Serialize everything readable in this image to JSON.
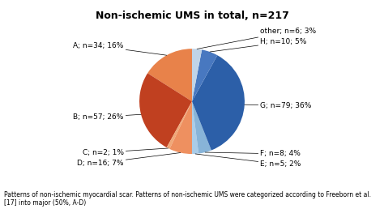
{
  "chart_data": {
    "type": "pie",
    "title": "Non-ischemic UMS in total, n=217",
    "categories": [
      "A; n=34; 16%",
      "B; n=57; 26%",
      "C; n=2; 1%",
      "D; n=16; 7%",
      "E; n=5; 2%",
      "F; n=8; 4%",
      "G; n=79; 36%",
      "H; n=10; 5%",
      "other; n=6; 3%"
    ],
    "values": [
      16,
      26,
      1,
      7,
      2,
      4,
      36,
      5,
      3
    ],
    "colors": [
      "#E8824A",
      "#C04020",
      "#F0A878",
      "#EE9060",
      "#AACCE8",
      "#88B4D8",
      "#2C5FA8",
      "#4878C0",
      "#C0D4E8"
    ],
    "caption": "Patterns of non-ischemic myocardial scar. Patterns of non-ischemic UMS were categorized according to Freeborn et al. [17] into major (50%, A-D)"
  }
}
